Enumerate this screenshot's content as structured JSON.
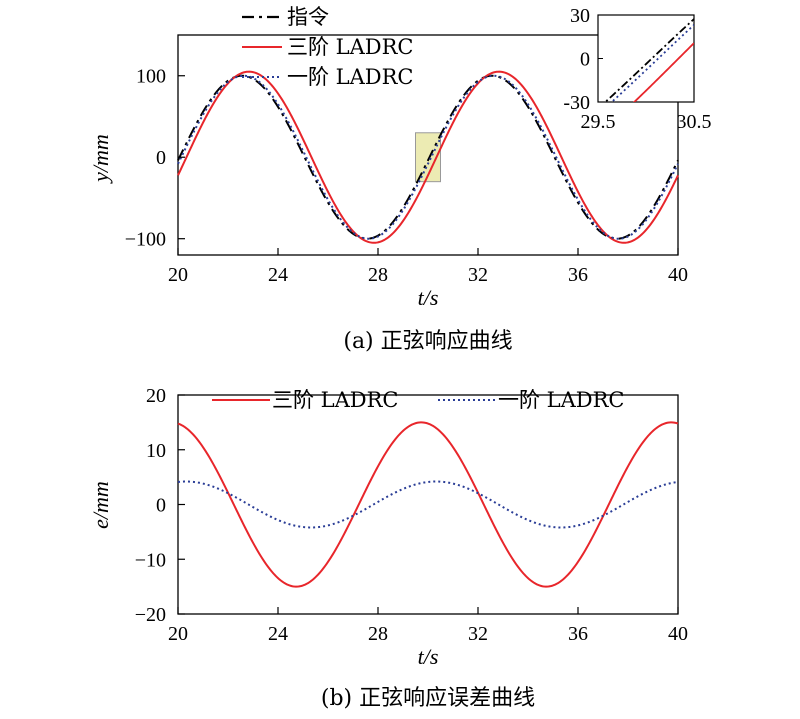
{
  "chart_data": [
    {
      "type": "line",
      "caption": "(a) 正弦响应曲线",
      "xlabel": "t/s",
      "ylabel": "y/mm",
      "xlim": [
        20,
        40
      ],
      "ylim": [
        -120,
        150
      ],
      "xticks": [
        20,
        24,
        28,
        32,
        36,
        40
      ],
      "yticks": [
        -100,
        0,
        100
      ],
      "ytick_labels": [
        "−100",
        "0",
        "100"
      ],
      "legend_position": "top-center",
      "series": [
        {
          "name": "指令",
          "color": "#000000",
          "style": "dash-dot",
          "amplitude": 100,
          "period": 10,
          "phase_deg": -2.2,
          "offset": 0
        },
        {
          "name": "三阶 LADRC",
          "color": "#e8262b",
          "style": "solid",
          "amplitude": 105,
          "period": 10,
          "phase_deg": -12.2,
          "offset": 0
        },
        {
          "name": "一阶 LADRC",
          "color": "#2a3d96",
          "style": "dotted",
          "amplitude": 100,
          "period": 10,
          "phase_deg": -4.6,
          "offset": 0
        }
      ],
      "highlight_box": {
        "x": [
          29.5,
          30.5
        ],
        "y": [
          -30,
          30
        ],
        "color": "#e6e49a"
      },
      "inset": {
        "xlim": [
          29.5,
          30.5
        ],
        "ylim": [
          -30,
          30
        ],
        "xticks": [
          29.5,
          30.5
        ],
        "yticks": [
          -30,
          0,
          30
        ],
        "position": "top-right"
      }
    },
    {
      "type": "line",
      "caption": "(b) 正弦响应误差曲线",
      "xlabel": "e/mm",
      "xaxis_label": "t/s",
      "ylabel": "e/mm",
      "xlim": [
        20,
        40
      ],
      "ylim": [
        -20,
        20
      ],
      "xticks": [
        20,
        24,
        28,
        32,
        36,
        40
      ],
      "yticks": [
        -20,
        -10,
        0,
        10,
        20
      ],
      "ytick_labels": [
        "−20",
        "−10",
        "0",
        "10",
        "20"
      ],
      "legend_position": "top",
      "series": [
        {
          "name": "三阶 LADRC",
          "color": "#e8262b",
          "style": "solid",
          "amplitude": 15,
          "period": 10,
          "phase_deg": 99.7,
          "offset": 0
        },
        {
          "name": "一阶 LADRC",
          "color": "#2a3d96",
          "style": "dotted",
          "amplitude": 4.2,
          "period": 10,
          "phase_deg": 78.5,
          "offset": 0
        }
      ]
    }
  ]
}
